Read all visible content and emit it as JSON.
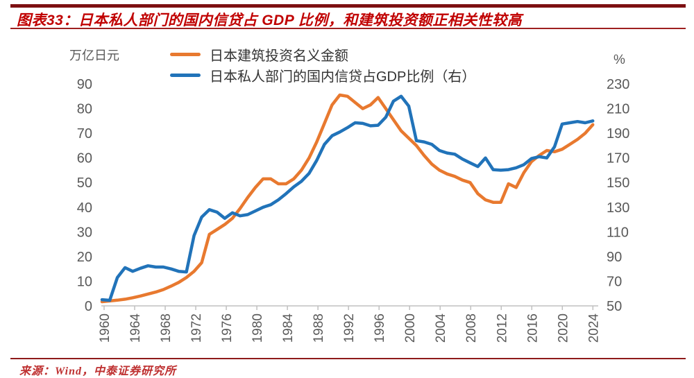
{
  "header": {
    "title": "图表33：日本私人部门的国内信贷占 GDP 比例，和建筑投资额正相关性较高"
  },
  "footer": {
    "source": "来源：Wind，中泰证券研究所"
  },
  "colors": {
    "title_red": "#C00000",
    "divider_dark_red": "#7D1012",
    "axis_text_gray": "#595959",
    "axis_line_gray": "#C0C0C0",
    "orange_series": "#E8792F",
    "blue_series": "#2173B9"
  },
  "chart_data": {
    "type": "line",
    "grid": false,
    "legend_position": "top",
    "x": [
      1960,
      1961,
      1962,
      1963,
      1964,
      1965,
      1966,
      1967,
      1968,
      1969,
      1970,
      1971,
      1972,
      1973,
      1974,
      1975,
      1976,
      1977,
      1978,
      1979,
      1980,
      1981,
      1982,
      1983,
      1984,
      1985,
      1986,
      1987,
      1988,
      1989,
      1990,
      1991,
      1992,
      1993,
      1994,
      1995,
      1996,
      1997,
      1998,
      1999,
      2000,
      2001,
      2002,
      2003,
      2004,
      2005,
      2006,
      2007,
      2008,
      2009,
      2010,
      2011,
      2012,
      2013,
      2014,
      2015,
      2016,
      2017,
      2018,
      2019,
      2020,
      2021,
      2022,
      2023,
      2024
    ],
    "x_tick_labels": [
      "1960",
      "1964",
      "1968",
      "1972",
      "1976",
      "1980",
      "1984",
      "1988",
      "1992",
      "1996",
      "2000",
      "2004",
      "2008",
      "2012",
      "2016",
      "2020",
      "2024"
    ],
    "left_axis": {
      "unit_label": "万亿日元",
      "min": 0,
      "max": 90,
      "tick_step": 10,
      "ticks": [
        0,
        10,
        20,
        30,
        40,
        50,
        60,
        70,
        80,
        90
      ]
    },
    "right_axis": {
      "unit_label": "%",
      "min": 50,
      "max": 230,
      "tick_step": 20,
      "ticks": [
        50,
        70,
        90,
        110,
        130,
        150,
        170,
        190,
        210,
        230
      ]
    },
    "series": [
      {
        "name": "日本建筑投资名义金额",
        "axis": "left",
        "color": "#E8792F",
        "values": [
          1.7,
          2.0,
          2.3,
          2.7,
          3.3,
          4.0,
          4.8,
          5.6,
          6.6,
          8.0,
          9.5,
          11.5,
          14.0,
          17.5,
          29.0,
          31.0,
          33.0,
          35.5,
          39.5,
          44.0,
          48.0,
          51.5,
          51.5,
          49.5,
          49.5,
          51.5,
          55.0,
          60.0,
          66.5,
          74.0,
          81.5,
          85.5,
          85.0,
          82.5,
          80.0,
          81.5,
          84.5,
          80.0,
          75.5,
          71.0,
          68.0,
          65.0,
          61.0,
          57.5,
          55.0,
          53.5,
          52.5,
          51.0,
          50.0,
          45.5,
          43.0,
          42.0,
          42.0,
          49.5,
          48.0,
          54.0,
          58.5,
          61.0,
          63.0,
          62.5,
          63.5,
          65.5,
          67.5,
          70.0,
          73.5
        ]
      },
      {
        "name": "日本私人部门的国内信贷占GDP比例（右）",
        "axis": "right",
        "color": "#2173B9",
        "values": [
          55,
          54.5,
          73,
          81,
          78,
          80.5,
          82.5,
          81.5,
          81.5,
          80,
          78,
          77.5,
          107,
          122,
          128,
          126,
          121,
          125.5,
          123,
          124,
          127,
          130,
          132,
          136,
          141,
          146.5,
          151,
          157.5,
          168,
          181,
          188,
          191,
          194.5,
          198.5,
          198,
          196,
          196.5,
          203,
          216,
          220,
          212,
          184,
          183,
          181,
          176,
          174,
          173,
          169,
          166,
          163,
          170,
          160.5,
          160,
          160.5,
          162,
          164.5,
          169.5,
          171,
          170,
          179,
          197.5,
          198.5,
          199.5,
          198.5,
          200
        ]
      }
    ]
  }
}
